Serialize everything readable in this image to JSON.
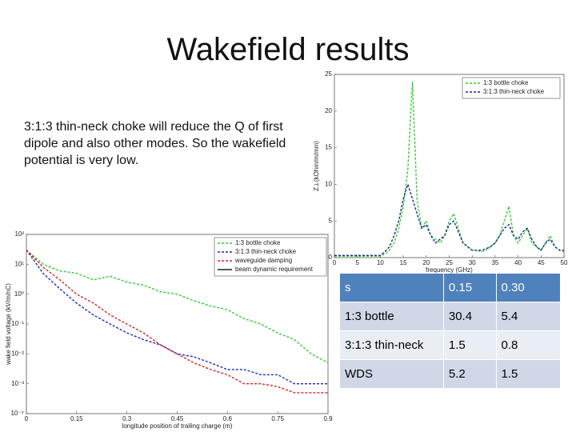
{
  "title": "Wakefield results",
  "text": "3:1:3 thin-neck choke will reduce the Q of first dipole and also other modes. So the wakefield potential is very low.",
  "impedance_chart": {
    "type": "line",
    "xlabel": "frequency (GHz)",
    "ylabel": "Z⊥(kOhm/m/mm)",
    "x": [
      0,
      1,
      2,
      3,
      4,
      5,
      6,
      7,
      8,
      9,
      10,
      11,
      12,
      13,
      14,
      15,
      16,
      17,
      18,
      19,
      20,
      21,
      22,
      23,
      24,
      25,
      26,
      27,
      28,
      29,
      30,
      31,
      32,
      33,
      34,
      35,
      36,
      37,
      38,
      39,
      40,
      41,
      42,
      43,
      44,
      45,
      46,
      47,
      48,
      49,
      50
    ],
    "xlim": [
      0,
      50
    ],
    "xticks": [
      0,
      5,
      10,
      15,
      20,
      25,
      30,
      35,
      40,
      45,
      50
    ],
    "ylim": [
      0,
      25
    ],
    "yticks": [
      0,
      5,
      10,
      15,
      20,
      25
    ],
    "log": false,
    "legend": "upper right",
    "series": [
      {
        "name": "1:3 bottle choke",
        "color": "#33cc33",
        "dash": true,
        "values": [
          0.2,
          0.2,
          0.2,
          0.2,
          0.2,
          0.2,
          0.2,
          0.2,
          0.2,
          0.2,
          0.2,
          0.5,
          1,
          2,
          4,
          7,
          12,
          24,
          8,
          4,
          5,
          3,
          2.5,
          2,
          3,
          5,
          6,
          4,
          2,
          1.5,
          1,
          1,
          0.8,
          1,
          1.5,
          2,
          3,
          5,
          7,
          3,
          2,
          3,
          4,
          2,
          1.5,
          1,
          2,
          3,
          1.5,
          1,
          0.8
        ]
      },
      {
        "name": "3:1:3 thin-neck choke",
        "color": "#1a2a8c",
        "dash": true,
        "values": [
          0.3,
          0.3,
          0.3,
          0.3,
          0.3,
          0.3,
          0.3,
          0.3,
          0.3,
          0.3,
          0.3,
          0.8,
          1.5,
          3,
          5,
          8,
          10,
          8,
          6,
          4,
          4.5,
          3,
          2,
          2.5,
          3,
          4.5,
          5,
          3.5,
          2,
          1.5,
          1,
          1,
          1,
          1.2,
          1.5,
          2,
          3,
          4,
          4.5,
          3,
          2.5,
          3.5,
          4,
          2.5,
          1.5,
          1,
          2,
          2.5,
          1.5,
          1,
          1
        ]
      }
    ]
  },
  "wake_chart": {
    "type": "line",
    "xlabel": "longitude position of trailing charge (m)",
    "ylabel": "wake field voltage (kV/m/nC)",
    "x": [
      0,
      0.05,
      0.1,
      0.15,
      0.2,
      0.25,
      0.3,
      0.35,
      0.4,
      0.45,
      0.5,
      0.55,
      0.6,
      0.65,
      0.7,
      0.75,
      0.8,
      0.85,
      0.9
    ],
    "xlim": [
      0,
      0.9
    ],
    "xticks": [
      0,
      0.15,
      0.3,
      0.45,
      0.6,
      0.75,
      0.9
    ],
    "ylim": [
      0.0001,
      100
    ],
    "log": true,
    "legend": "upper right",
    "yticks": [
      {
        "value": 100,
        "label": "10²"
      },
      {
        "value": 10,
        "label": "10¹"
      },
      {
        "value": 1,
        "label": "10⁰"
      },
      {
        "value": 0.1,
        "label": "10⁻¹"
      },
      {
        "value": 0.01,
        "label": "10⁻²"
      },
      {
        "value": 0.001,
        "label": "10⁻³"
      },
      {
        "value": 0.0001,
        "label": "10⁻⁴"
      }
    ],
    "series": [
      {
        "name": "1:3 bottle choke",
        "color": "#33cc33",
        "dash": true,
        "values": [
          30,
          10,
          6,
          5,
          3,
          4,
          2.5,
          2,
          1.2,
          1,
          0.6,
          0.4,
          0.3,
          0.15,
          0.1,
          0.05,
          0.03,
          0.01,
          0.005
        ]
      },
      {
        "name": "3:1:3 thin-neck choke",
        "color": "#1a2acc",
        "dash": true,
        "values": [
          30,
          5,
          1.5,
          0.5,
          0.2,
          0.1,
          0.05,
          0.03,
          0.02,
          0.01,
          0.008,
          0.005,
          0.003,
          0.003,
          0.002,
          0.002,
          0.001,
          0.001,
          0.001
        ]
      },
      {
        "name": "waveguide damping",
        "color": "#dd2222",
        "dash": true,
        "values": [
          30,
          8,
          3,
          1,
          0.5,
          0.2,
          0.1,
          0.05,
          0.02,
          0.01,
          0.005,
          0.003,
          0.002,
          0.001,
          0.001,
          0.0008,
          0.0005,
          0.0005,
          0.0005
        ]
      },
      {
        "name": "beam dynamic requirement",
        "color": "#222222",
        "dash": false
      }
    ]
  },
  "table": {
    "rows": [
      [
        "s",
        "0.15",
        "0.30"
      ],
      [
        "1:3 bottle",
        "30.4",
        "5.4"
      ],
      [
        "3:1:3 thin-neck",
        "1.5",
        "0.8"
      ],
      [
        "WDS",
        "5.2",
        "1.5"
      ]
    ]
  }
}
